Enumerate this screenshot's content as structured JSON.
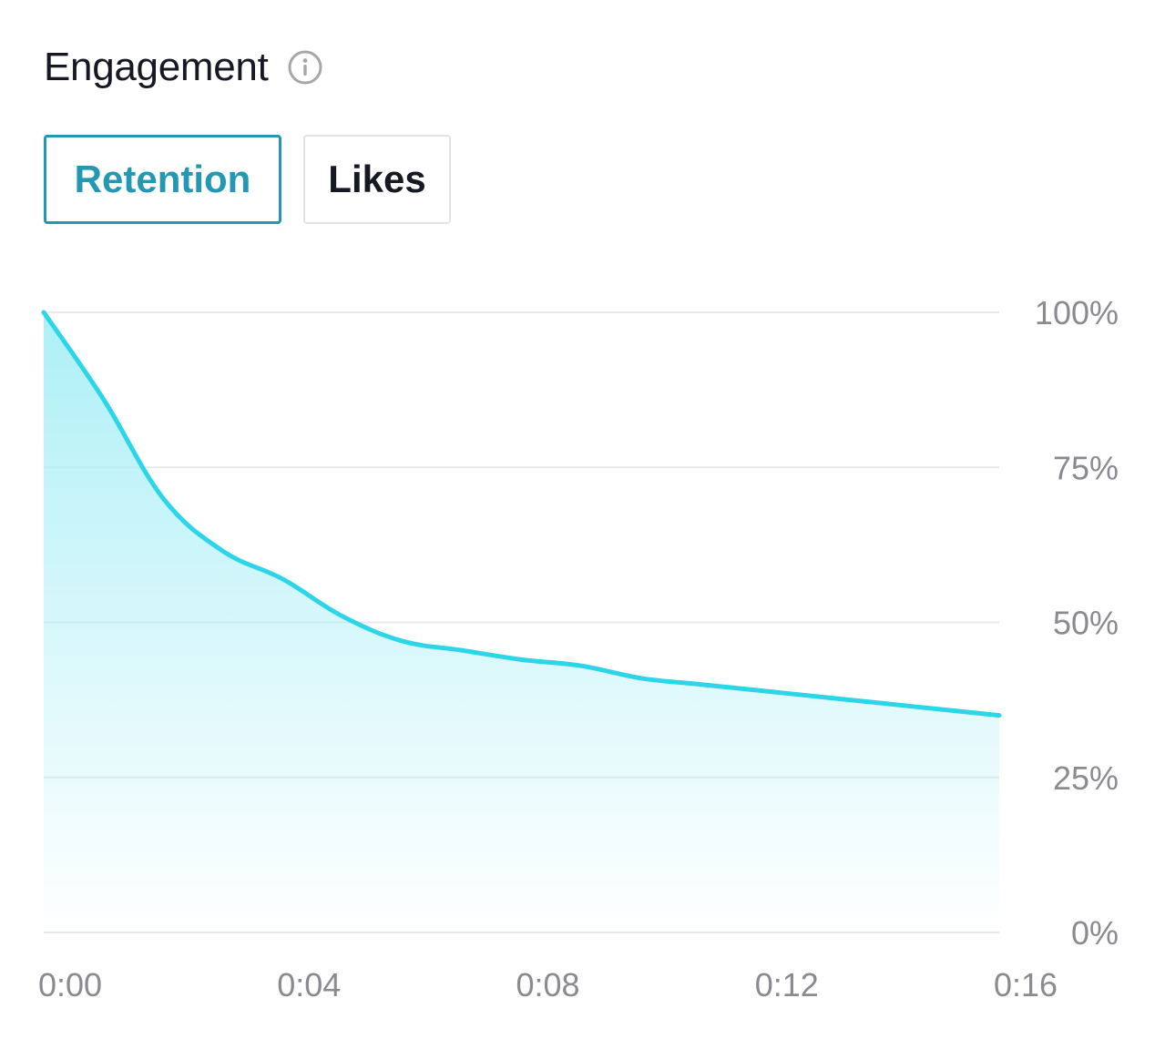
{
  "header": {
    "title": "Engagement",
    "info_icon": "info-icon"
  },
  "tabs": [
    {
      "label": "Retention",
      "active": true
    },
    {
      "label": "Likes",
      "active": false
    }
  ],
  "colors": {
    "accent": "#2498b3",
    "line": "#2dd5e8",
    "fill_top": "#a9eff6",
    "grid": "#e9e9ea",
    "tick_text": "#8a8b91"
  },
  "chart_data": {
    "type": "area",
    "title": "Retention",
    "xlabel": "",
    "ylabel": "",
    "x_unit": "seconds",
    "xlim": [
      0,
      16
    ],
    "ylim": [
      0,
      100
    ],
    "x_ticks": [
      {
        "value": 0,
        "label": "0:00"
      },
      {
        "value": 4,
        "label": "0:04"
      },
      {
        "value": 8,
        "label": "0:08"
      },
      {
        "value": 12,
        "label": "0:12"
      },
      {
        "value": 16,
        "label": "0:16"
      }
    ],
    "y_ticks": [
      {
        "value": 100,
        "label": "100%"
      },
      {
        "value": 75,
        "label": "75%"
      },
      {
        "value": 50,
        "label": "50%"
      },
      {
        "value": 25,
        "label": "25%"
      },
      {
        "value": 0,
        "label": "0%"
      }
    ],
    "grid": true,
    "series": [
      {
        "name": "Retention",
        "points": [
          {
            "x": 0,
            "y": 100
          },
          {
            "x": 1,
            "y": 86
          },
          {
            "x": 2,
            "y": 70
          },
          {
            "x": 3,
            "y": 61.5
          },
          {
            "x": 4,
            "y": 57
          },
          {
            "x": 5,
            "y": 51
          },
          {
            "x": 6,
            "y": 47
          },
          {
            "x": 7,
            "y": 45.5
          },
          {
            "x": 8,
            "y": 44
          },
          {
            "x": 9,
            "y": 43
          },
          {
            "x": 10,
            "y": 41
          },
          {
            "x": 11,
            "y": 40
          },
          {
            "x": 12,
            "y": 39
          },
          {
            "x": 13,
            "y": 38
          },
          {
            "x": 14,
            "y": 37
          },
          {
            "x": 15,
            "y": 36
          },
          {
            "x": 16,
            "y": 35
          }
        ]
      }
    ]
  }
}
